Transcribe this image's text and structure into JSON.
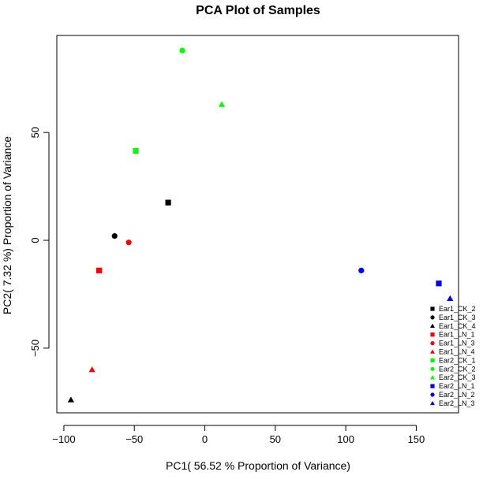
{
  "chart_data": {
    "type": "scatter",
    "title": "PCA Plot of Samples",
    "xlabel": "PC1( 56.52 % Proportion of Variance)",
    "ylabel": "PC2( 7.32 %) Proportion of Variance",
    "xlim": [
      -105,
      180
    ],
    "ylim": [
      -80,
      95
    ],
    "xticks": [
      -100,
      -50,
      0,
      50,
      100,
      150
    ],
    "yticks": [
      -50,
      0,
      50
    ],
    "grid": false,
    "legend_position": "bottom-right",
    "series": [
      {
        "name": "Ear1_CK_2",
        "color": "#000000",
        "shape": "square",
        "x": -26,
        "y": 17.5
      },
      {
        "name": "Ear1_CK_3",
        "color": "#000000",
        "shape": "circle",
        "x": -64,
        "y": 2
      },
      {
        "name": "Ear1_CK_4",
        "color": "#000000",
        "shape": "triangle",
        "x": -95,
        "y": -74
      },
      {
        "name": "Ear1_LN_1",
        "color": "#ff0000",
        "shape": "square",
        "x": -75,
        "y": -14
      },
      {
        "name": "Ear1_LN_3",
        "color": "#ff0000",
        "shape": "circle",
        "x": -54,
        "y": -1
      },
      {
        "name": "Ear1_LN_4",
        "color": "#ff0000",
        "shape": "triangle",
        "x": -80,
        "y": -60
      },
      {
        "name": "Ear2_CK_1",
        "color": "#00ff00",
        "shape": "square",
        "x": -49,
        "y": 41.5
      },
      {
        "name": "Ear2_CK_2",
        "color": "#00ff00",
        "shape": "circle",
        "x": -16,
        "y": 88
      },
      {
        "name": "Ear2_CK_3",
        "color": "#00ff00",
        "shape": "triangle",
        "x": 12,
        "y": 63
      },
      {
        "name": "Ear2_LN_1",
        "color": "#0000ff",
        "shape": "square",
        "x": 166,
        "y": -20
      },
      {
        "name": "Ear2_LN_2",
        "color": "#0000ff",
        "shape": "circle",
        "x": 111,
        "y": -14
      },
      {
        "name": "Ear2_LN_3",
        "color": "#0000ff",
        "shape": "triangle",
        "x": 174,
        "y": -27
      }
    ]
  }
}
